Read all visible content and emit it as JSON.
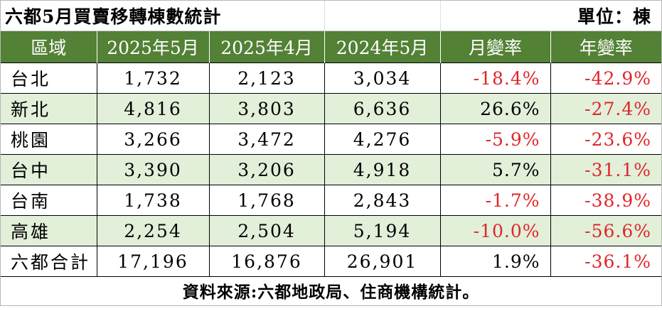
{
  "title": "六都5月買賣移轉棟數統計",
  "unit": "單位：棟",
  "colors": {
    "header_bg": "#538135",
    "header_text": "#ffffff",
    "row_shade": "#e2efd9",
    "negative": "#e0262a",
    "positive": "#000000"
  },
  "table": {
    "headers": [
      "區域",
      "2025年5月",
      "2025年4月",
      "2024年5月",
      "月變率",
      "年變率"
    ],
    "rows": [
      {
        "region": "台北",
        "may2025": "1,732",
        "apr2025": "2,123",
        "may2024": "3,034",
        "mom": "-18.4%",
        "yoy": "-42.9%",
        "mom_negative": true,
        "yoy_negative": true,
        "shaded": false
      },
      {
        "region": "新北",
        "may2025": "4,816",
        "apr2025": "3,803",
        "may2024": "6,636",
        "mom": "26.6%",
        "yoy": "-27.4%",
        "mom_negative": false,
        "yoy_negative": true,
        "shaded": true
      },
      {
        "region": "桃園",
        "may2025": "3,266",
        "apr2025": "3,472",
        "may2024": "4,276",
        "mom": "-5.9%",
        "yoy": "-23.6%",
        "mom_negative": true,
        "yoy_negative": true,
        "shaded": false
      },
      {
        "region": "台中",
        "may2025": "3,390",
        "apr2025": "3,206",
        "may2024": "4,918",
        "mom": "5.7%",
        "yoy": "-31.1%",
        "mom_negative": false,
        "yoy_negative": true,
        "shaded": true
      },
      {
        "region": "台南",
        "may2025": "1,738",
        "apr2025": "1,768",
        "may2024": "2,843",
        "mom": "-1.7%",
        "yoy": "-38.9%",
        "mom_negative": true,
        "yoy_negative": true,
        "shaded": false
      },
      {
        "region": "高雄",
        "may2025": "2,254",
        "apr2025": "2,504",
        "may2024": "5,194",
        "mom": "-10.0%",
        "yoy": "-56.6%",
        "mom_negative": true,
        "yoy_negative": true,
        "shaded": true
      },
      {
        "region": "六都合計",
        "may2025": "17,196",
        "apr2025": "16,876",
        "may2024": "26,901",
        "mom": "1.9%",
        "yoy": "-36.1%",
        "mom_negative": false,
        "yoy_negative": true,
        "shaded": false
      }
    ]
  },
  "source": "資料來源:六都地政局、住商機構統計。"
}
